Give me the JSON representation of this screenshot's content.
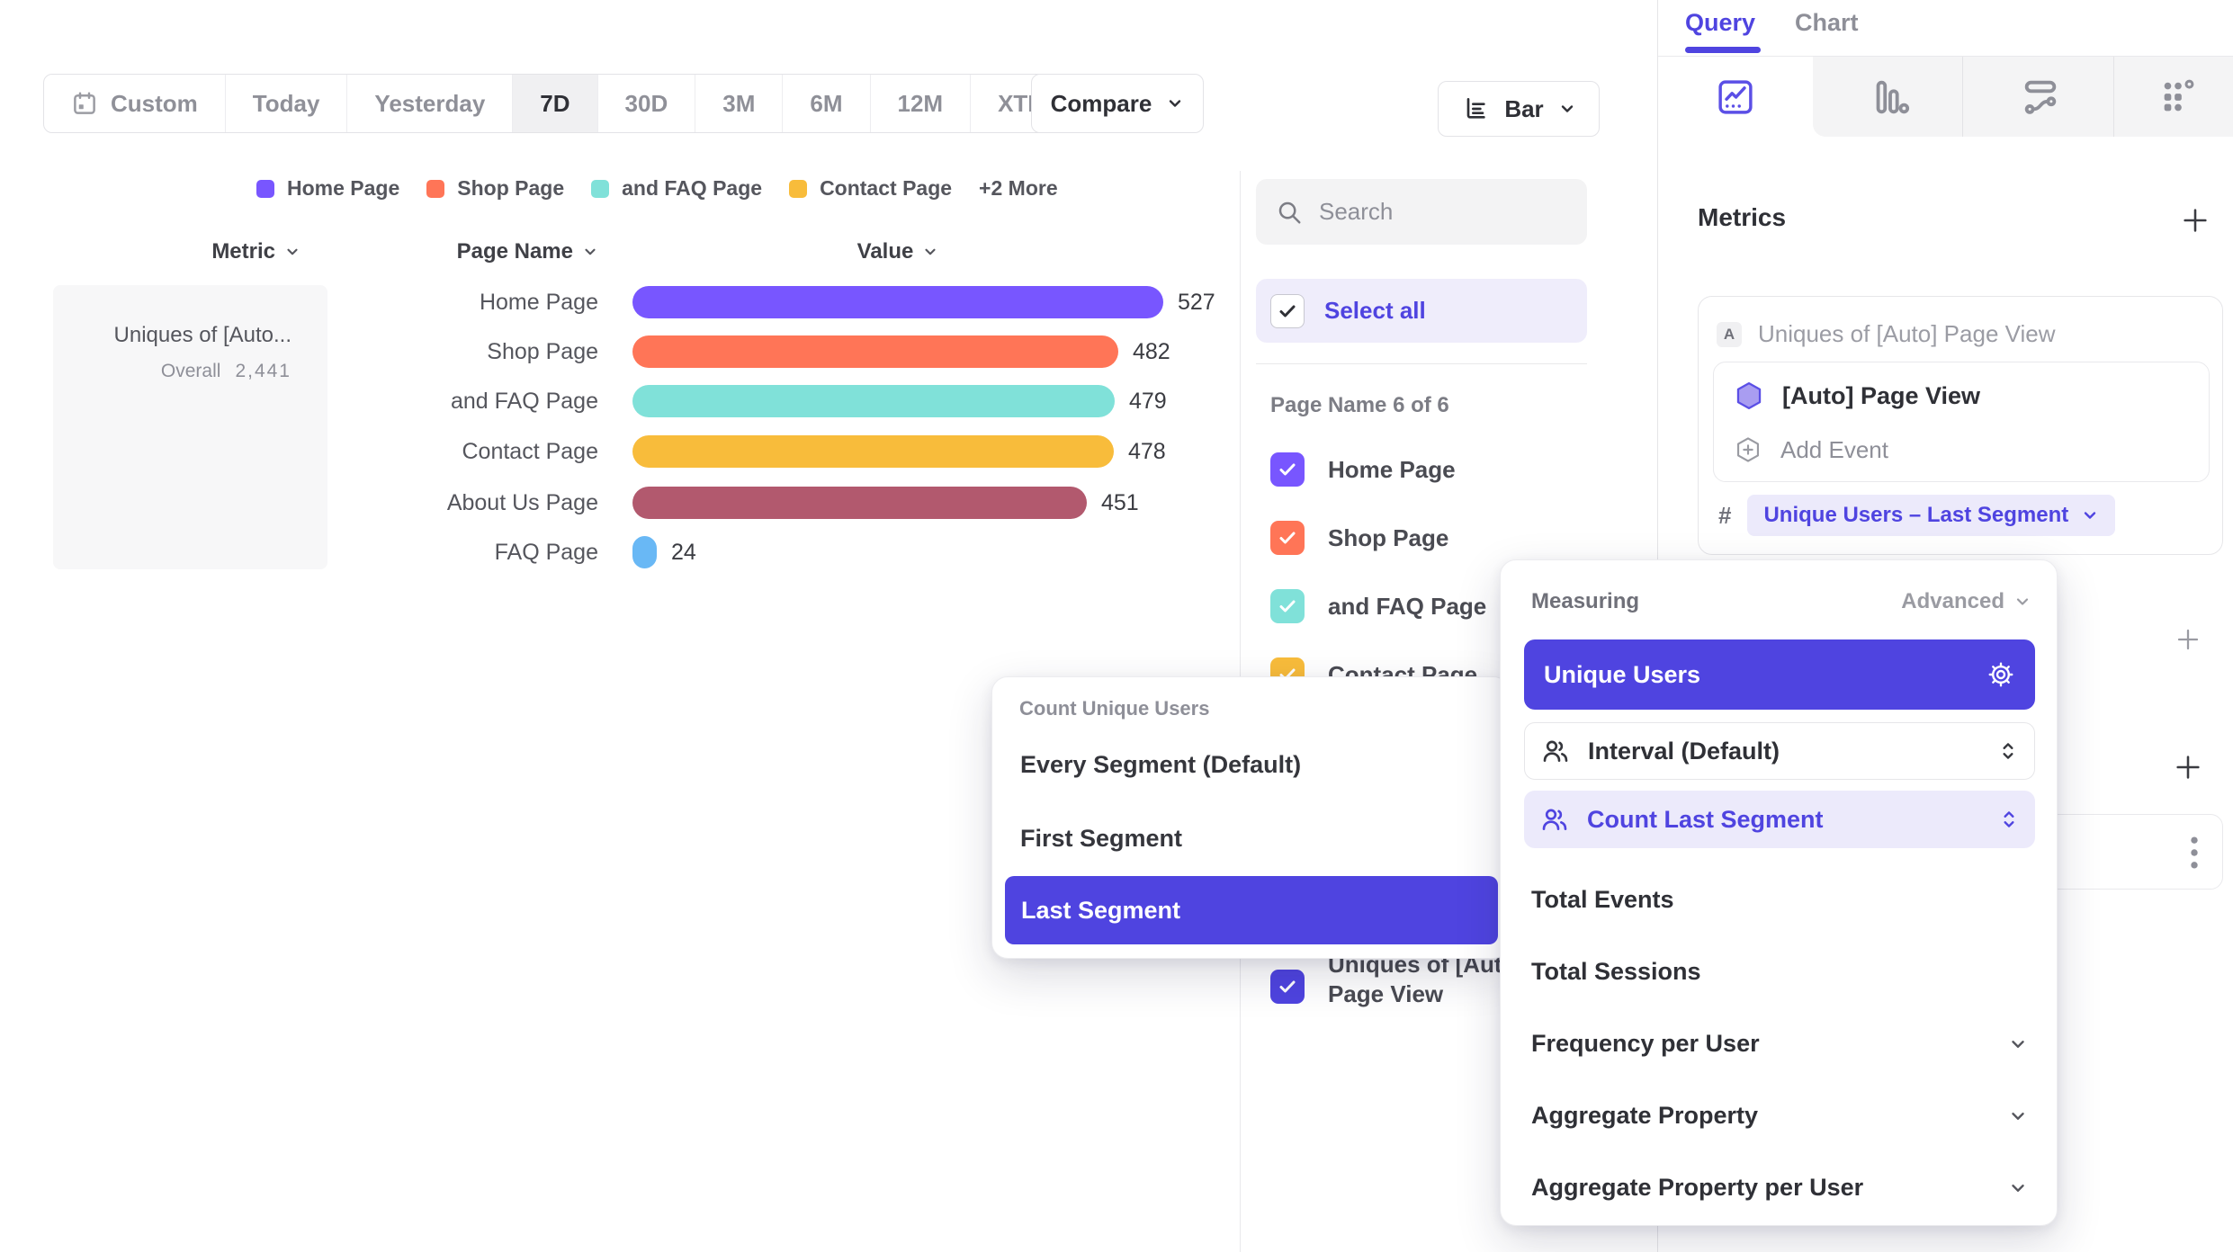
{
  "colors": {
    "accent": "#4F44E0",
    "accent_light": "#ECEAFB",
    "series": [
      "#7856FF",
      "#FF7557",
      "#80E1D9",
      "#F8BC3B",
      "#B2596E",
      "#69B8F5"
    ]
  },
  "toolbar": {
    "ranges": [
      "Custom",
      "Today",
      "Yesterday",
      "7D",
      "30D",
      "3M",
      "6M",
      "12M",
      "XTD"
    ],
    "active_range": "7D",
    "compare_label": "Compare",
    "chart_type_label": "Bar"
  },
  "legend": {
    "items": [
      {
        "label": "Home Page",
        "color": "#7856FF"
      },
      {
        "label": "Shop Page",
        "color": "#FF7557"
      },
      {
        "label": "and FAQ Page",
        "color": "#80E1D9"
      },
      {
        "label": "Contact Page",
        "color": "#F8BC3B"
      }
    ],
    "more_label": "+2 More"
  },
  "table": {
    "metric_header": "Metric",
    "page_header": "Page Name",
    "value_header": "Value",
    "metric_card": {
      "name": "Uniques of [Auto...",
      "overall_label": "Overall",
      "overall_value": "2,441"
    },
    "rows": [
      {
        "label": "Home Page",
        "value": 527,
        "color": "#7856FF"
      },
      {
        "label": "Shop Page",
        "value": 482,
        "color": "#FF7557"
      },
      {
        "label": "and FAQ Page",
        "value": 479,
        "color": "#80E1D9"
      },
      {
        "label": "Contact Page",
        "value": 478,
        "color": "#F8BC3B"
      },
      {
        "label": "About Us Page",
        "value": 451,
        "color": "#B2596E"
      },
      {
        "label": "FAQ Page",
        "value": 24,
        "color": "#69B8F5"
      }
    ]
  },
  "chart_data": {
    "type": "bar",
    "orientation": "horizontal",
    "title": "Uniques of [Auto] Page View",
    "categories": [
      "Home Page",
      "Shop Page",
      "and FAQ Page",
      "Contact Page",
      "About Us Page",
      "FAQ Page"
    ],
    "values": [
      527,
      482,
      479,
      478,
      451,
      24
    ],
    "overall_total": 2441,
    "series_colors": [
      "#7856FF",
      "#FF7557",
      "#80E1D9",
      "#F8BC3B",
      "#B2596E",
      "#69B8F5"
    ],
    "xlim": [
      0,
      527
    ],
    "value_labels_shown": true
  },
  "filter_sidebar": {
    "search_placeholder": "Search",
    "select_all_label": "Select all",
    "group_label": "Page Name 6 of 6",
    "items": [
      {
        "label": "Home Page",
        "color": "#7856FF",
        "checked": true
      },
      {
        "label": "Shop Page",
        "color": "#FF7557",
        "checked": true
      },
      {
        "label": "and FAQ Page",
        "color": "#80E1D9",
        "checked": true
      },
      {
        "label": "Contact Page",
        "color": "#F8BC3B",
        "checked": true
      },
      {
        "label": "About Us Page",
        "color": "#B2596E",
        "checked": true
      },
      {
        "label": "FAQ Page",
        "color": "#69B8F5",
        "checked": true
      }
    ],
    "series_item": {
      "label": "Uniques of [Auto] Page View",
      "color": "#4F44E0",
      "checked": true
    }
  },
  "query_panel": {
    "tabs": {
      "query": "Query",
      "chart": "Chart"
    },
    "active_tab": "Query",
    "report_icons": [
      "insights",
      "funnels",
      "flows",
      "retention"
    ],
    "metrics_heading": "Metrics",
    "metric_letter": "A",
    "metric_title": "Uniques of [Auto] Page View",
    "event_name": "[Auto] Page View",
    "add_event_label": "Add Event",
    "hash_symbol": "#",
    "measurement_pill": "Unique Users – Last Segment"
  },
  "count_popup": {
    "title": "Count Unique Users",
    "items": [
      "Every Segment (Default)",
      "First Segment",
      "Last Segment"
    ],
    "selected": "Last Segment"
  },
  "measuring_popup": {
    "title": "Measuring",
    "advanced_label": "Advanced",
    "selected_label": "Unique Users",
    "interval_label": "Interval (Default)",
    "count_label": "Count Last Segment",
    "items": [
      "Total Events",
      "Total Sessions",
      "Frequency per User",
      "Aggregate Property",
      "Aggregate Property per User"
    ]
  }
}
